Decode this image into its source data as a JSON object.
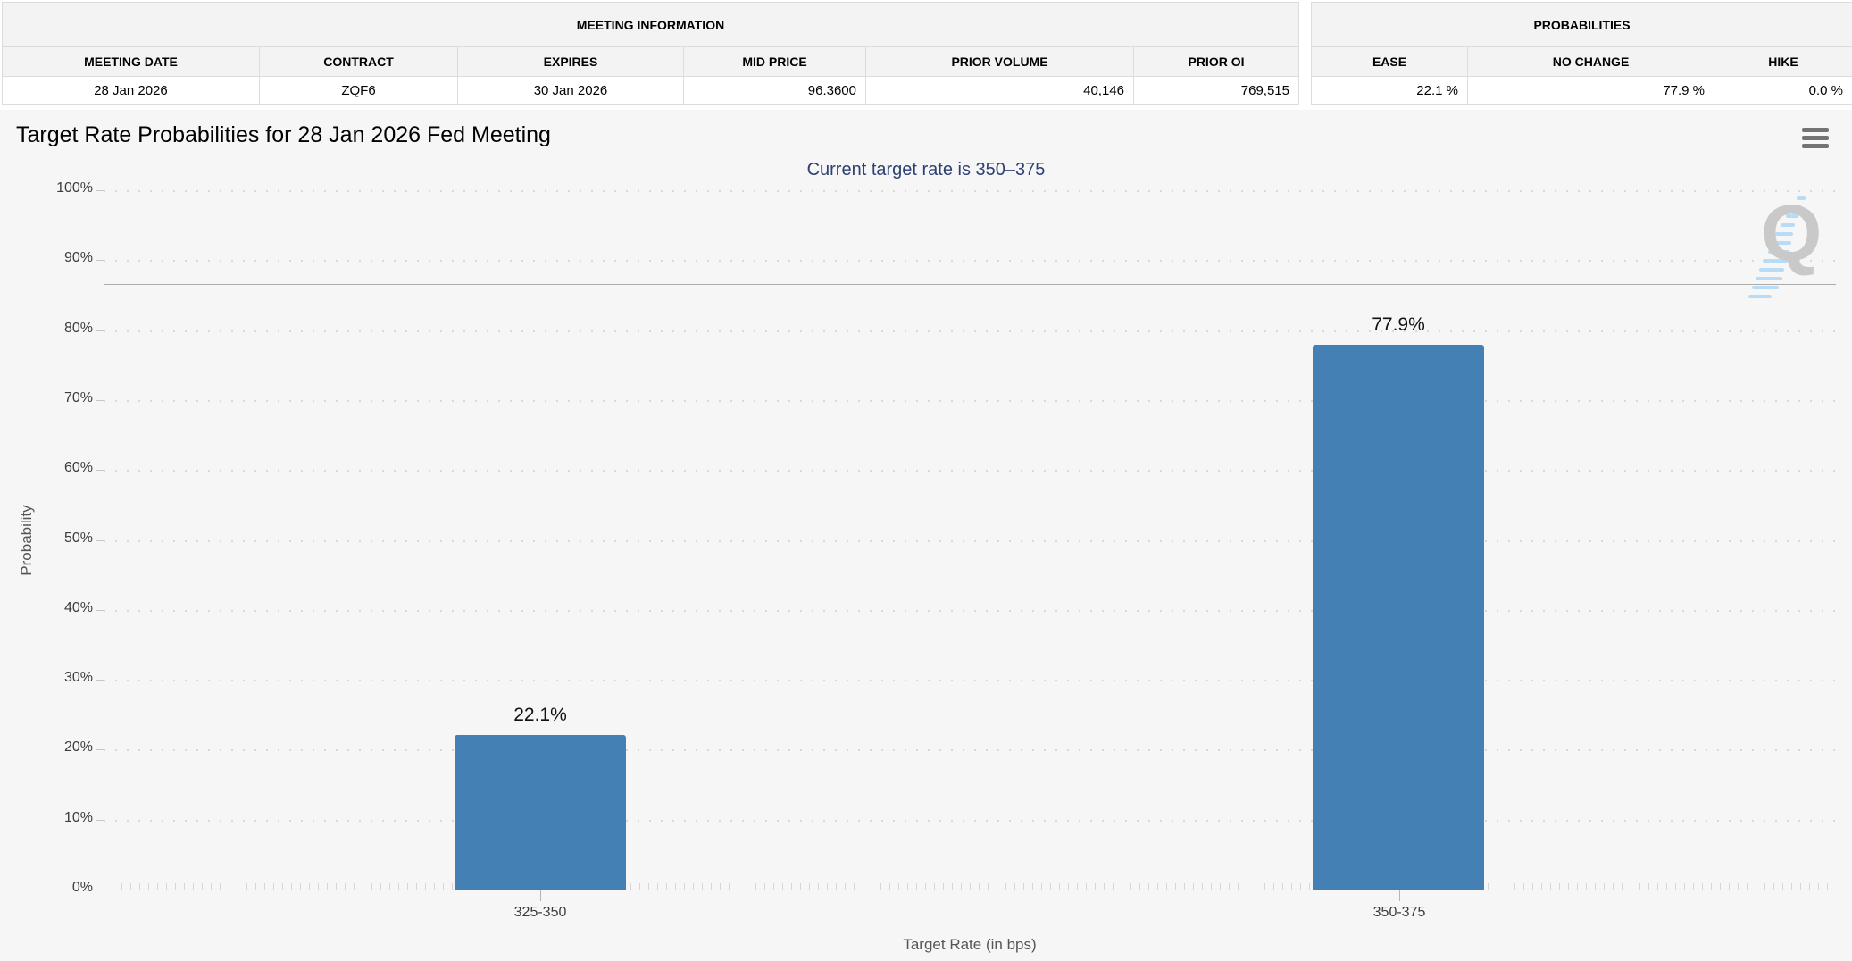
{
  "meeting_information": {
    "title": "MEETING INFORMATION",
    "columns": [
      "MEETING DATE",
      "CONTRACT",
      "EXPIRES",
      "MID PRICE",
      "PRIOR VOLUME",
      "PRIOR OI"
    ],
    "values": [
      "28 Jan 2026",
      "ZQF6",
      "30 Jan 2026",
      "96.3600",
      "40,146",
      "769,515"
    ]
  },
  "probabilities": {
    "title": "PROBABILITIES",
    "columns": [
      "EASE",
      "NO CHANGE",
      "HIKE"
    ],
    "values": [
      "22.1 %",
      "77.9 %",
      "0.0 %"
    ]
  },
  "icons": {
    "export_menu": "hamburger-menu-icon",
    "watermark_letter": "Q"
  },
  "chart_data": {
    "type": "bar",
    "title": "Target Rate Probabilities for 28 Jan 2026 Fed Meeting",
    "subtitle": "Current target rate is 350–375",
    "categories": [
      "325-350",
      "350-375"
    ],
    "values": [
      22.1,
      77.9
    ],
    "data_labels": [
      "22.1%",
      "77.9%"
    ],
    "xlabel": "Target Rate (in bps)",
    "ylabel": "Probability",
    "ylim": [
      0,
      100
    ],
    "ytick_labels": [
      "100%",
      "90%",
      "80%",
      "70%",
      "60%",
      "50%",
      "40%",
      "30%",
      "20%",
      "10%",
      "0%"
    ],
    "grid": "dotted-horizontal",
    "legend": "none",
    "bar_color": "#4480b4",
    "reference_line_pct": 86.6
  }
}
